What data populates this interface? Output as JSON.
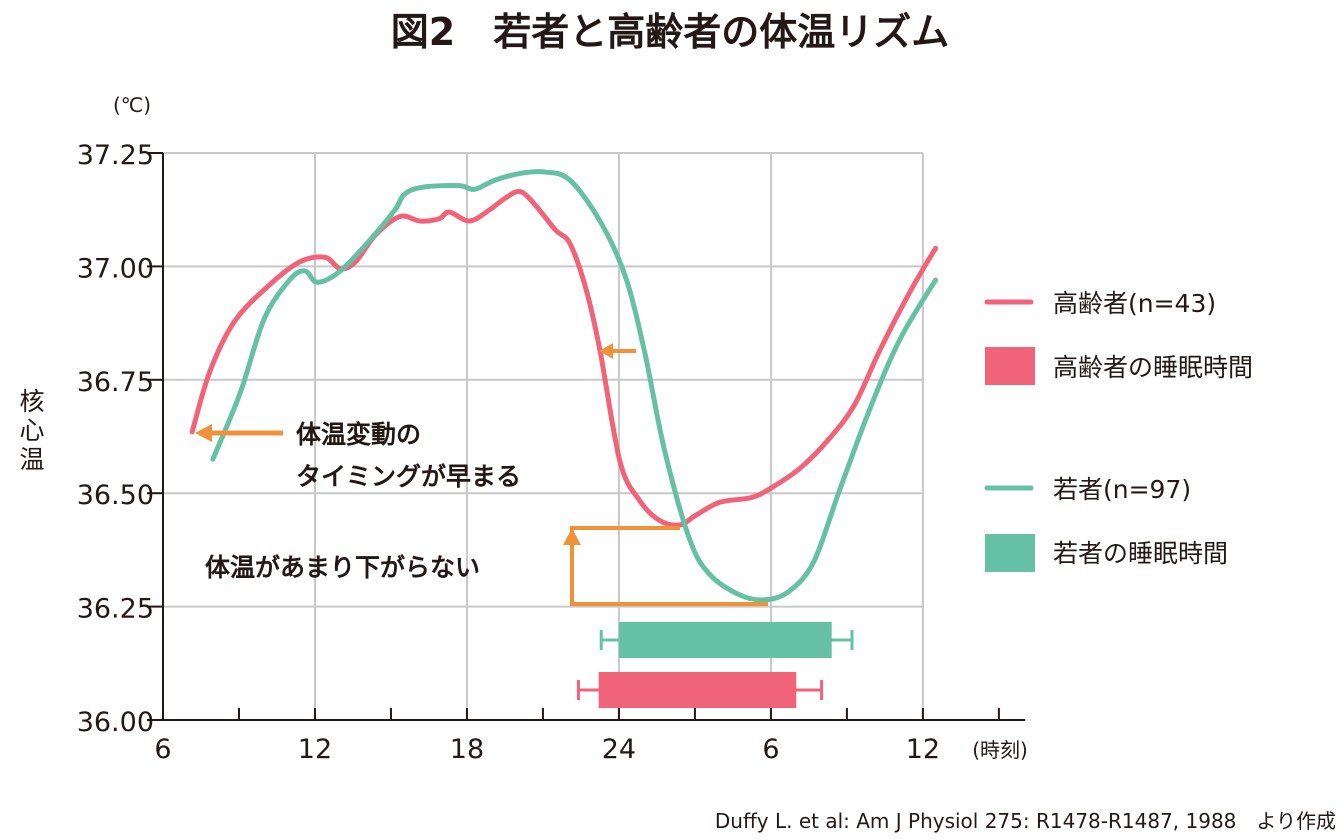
{
  "colors": {
    "elderly": "#f06378",
    "young": "#66c0a3",
    "annotation": "#f0923a",
    "grid": "#c8c8c8"
  },
  "chart_data": {
    "type": "line",
    "title": "図2　若者と高齢者の体温リズム",
    "ylabel": "核心温",
    "yunit": "(℃)",
    "xunit": "(時刻)",
    "xlim_hours": [
      6,
      40
    ],
    "ylim": [
      36.0,
      37.25
    ],
    "x_ticks": [
      {
        "hour": 6,
        "label": "6"
      },
      {
        "hour": 12,
        "label": "12"
      },
      {
        "hour": 18,
        "label": "18"
      },
      {
        "hour": 24,
        "label": "24"
      },
      {
        "hour": 30,
        "label": "6"
      },
      {
        "hour": 36,
        "label": "12"
      }
    ],
    "y_ticks": [
      {
        "value": 36.0,
        "label": "36.00"
      },
      {
        "value": 36.25,
        "label": "36.25"
      },
      {
        "value": 36.5,
        "label": "36.50"
      },
      {
        "value": 36.75,
        "label": "36.75"
      },
      {
        "value": 37.0,
        "label": "37.00"
      },
      {
        "value": 37.25,
        "label": "37.25"
      }
    ],
    "grid": true,
    "legend_position": "right",
    "series": [
      {
        "name": "高齢者(n=43)",
        "key": "elderly",
        "x": [
          7.15,
          7.86,
          8.84,
          10.22,
          11.4,
          12.4,
          13.0,
          13.6,
          14.4,
          15.36,
          16.15,
          16.9,
          17.3,
          18.1,
          18.9,
          19.5,
          20.1,
          20.7,
          21.5,
          22.07,
          22.7,
          23.25,
          24.04,
          24.8,
          25.6,
          26.4,
          27.0,
          27.98,
          29.2,
          29.96,
          31.15,
          32.3,
          33.3,
          34.3,
          35.5,
          36.5
        ],
        "y": [
          36.635,
          36.77,
          36.88,
          36.96,
          37.01,
          37.02,
          36.995,
          37.01,
          37.07,
          37.11,
          37.1,
          37.105,
          37.12,
          37.1,
          37.125,
          37.15,
          37.165,
          37.135,
          37.08,
          37.05,
          36.95,
          36.815,
          36.57,
          36.485,
          36.44,
          36.43,
          36.45,
          36.48,
          36.49,
          36.51,
          36.555,
          36.62,
          36.695,
          36.815,
          36.945,
          37.04
        ]
      },
      {
        "name": "若者(n=97)",
        "key": "young",
        "x": [
          7.97,
          9.04,
          10.0,
          11.0,
          11.6,
          12.1,
          13.0,
          14.2,
          15.16,
          15.55,
          16.3,
          17.7,
          18.3,
          19.1,
          20.1,
          21.1,
          22.07,
          23.25,
          24.24,
          25.0,
          25.8,
          26.8,
          27.6,
          28.8,
          29.8,
          30.75,
          31.7,
          32.7,
          33.9,
          35.1,
          36.5
        ],
        "y": [
          36.575,
          36.72,
          36.885,
          36.97,
          36.99,
          36.965,
          36.99,
          37.06,
          37.125,
          37.16,
          37.175,
          37.178,
          37.17,
          37.19,
          37.205,
          37.208,
          37.19,
          37.1,
          36.98,
          36.815,
          36.595,
          36.397,
          36.32,
          36.275,
          36.265,
          36.285,
          36.35,
          36.505,
          36.685,
          36.84,
          36.97
        ]
      }
    ],
    "sleep_bars": [
      {
        "name": "若者の睡眠時間",
        "key": "young",
        "start": 24.0,
        "end": 32.4,
        "whisker_low": 23.3,
        "whisker_high": 33.2
      },
      {
        "name": "高齢者の睡眠時間",
        "key": "elderly",
        "start": 23.2,
        "end": 31.0,
        "whisker_low": 22.4,
        "whisker_high": 32.0
      }
    ],
    "annotations": [
      "体温変動の",
      "タイミングが早まる",
      "体温があまり下がらない"
    ]
  },
  "source": "Duffy L. et al: Am J Physiol 275: R1478-R1487, 1988　より作成"
}
